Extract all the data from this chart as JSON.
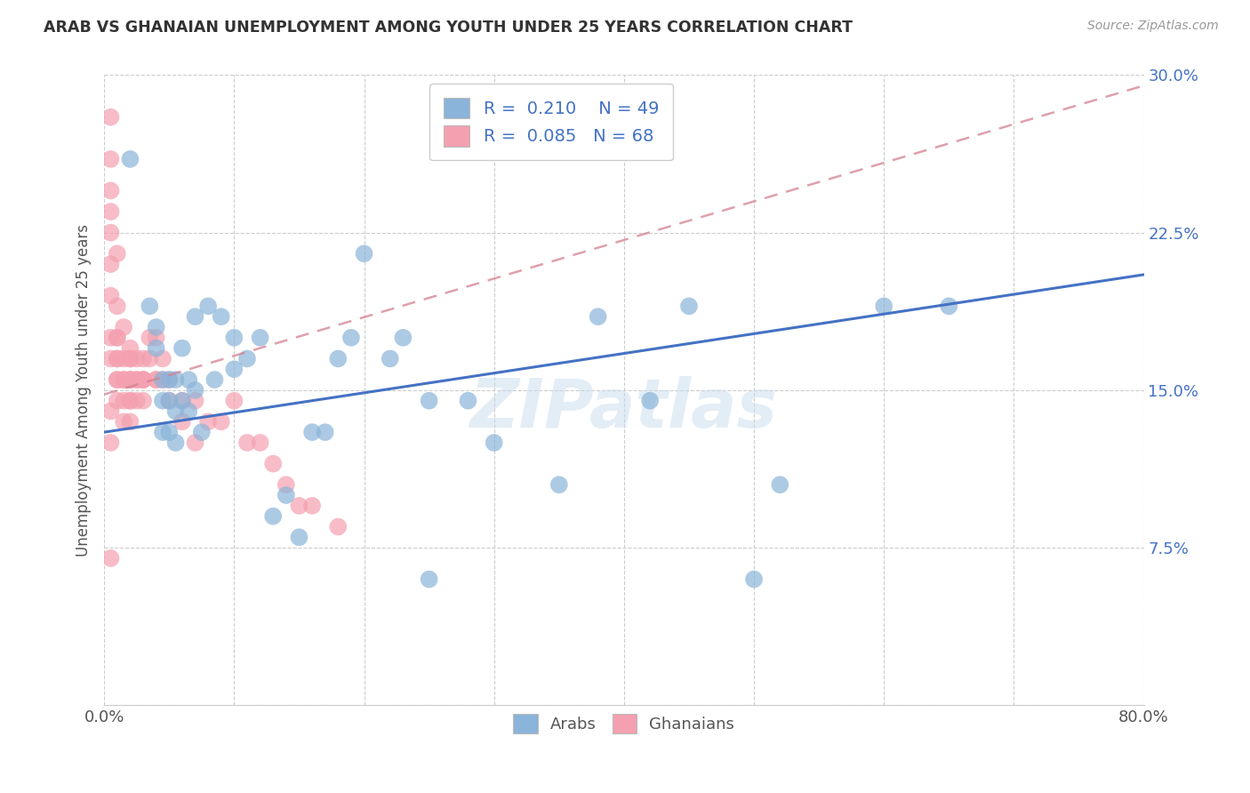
{
  "title": "ARAB VS GHANAIAN UNEMPLOYMENT AMONG YOUTH UNDER 25 YEARS CORRELATION CHART",
  "source": "Source: ZipAtlas.com",
  "ylabel": "Unemployment Among Youth under 25 years",
  "xlim": [
    0.0,
    0.8
  ],
  "ylim": [
    0.0,
    0.3
  ],
  "xticks": [
    0.0,
    0.1,
    0.2,
    0.3,
    0.4,
    0.5,
    0.6,
    0.7,
    0.8
  ],
  "xticklabels": [
    "0.0%",
    "",
    "",
    "",
    "",
    "",
    "",
    "",
    "80.0%"
  ],
  "yticks": [
    0.0,
    0.075,
    0.15,
    0.225,
    0.3
  ],
  "yticklabels": [
    "",
    "7.5%",
    "15.0%",
    "22.5%",
    "30.0%"
  ],
  "arab_R": "0.210",
  "arab_N": "49",
  "ghanaian_R": "0.085",
  "ghanaian_N": "68",
  "arab_color": "#8ab4d9",
  "ghanaian_color": "#f4a0b0",
  "arab_line_color": "#4472c4",
  "ghanaian_line_color": "#d48090",
  "watermark": "ZIPatlas",
  "background_color": "#ffffff",
  "arab_line_x0": 0.0,
  "arab_line_y0": 0.13,
  "arab_line_x1": 0.8,
  "arab_line_y1": 0.205,
  "ghanaian_line_x0": 0.0,
  "ghanaian_line_y0": 0.148,
  "ghanaian_line_x1": 0.8,
  "ghanaian_line_y1": 0.295,
  "arab_x": [
    0.02,
    0.035,
    0.04,
    0.04,
    0.045,
    0.045,
    0.045,
    0.05,
    0.05,
    0.05,
    0.055,
    0.055,
    0.055,
    0.06,
    0.06,
    0.065,
    0.065,
    0.07,
    0.07,
    0.075,
    0.08,
    0.085,
    0.09,
    0.1,
    0.1,
    0.11,
    0.12,
    0.13,
    0.14,
    0.15,
    0.16,
    0.17,
    0.18,
    0.19,
    0.2,
    0.22,
    0.23,
    0.25,
    0.25,
    0.28,
    0.3,
    0.35,
    0.38,
    0.42,
    0.45,
    0.5,
    0.52,
    0.6,
    0.65
  ],
  "arab_y": [
    0.26,
    0.19,
    0.18,
    0.17,
    0.155,
    0.145,
    0.13,
    0.155,
    0.145,
    0.13,
    0.155,
    0.14,
    0.125,
    0.17,
    0.145,
    0.155,
    0.14,
    0.185,
    0.15,
    0.13,
    0.19,
    0.155,
    0.185,
    0.175,
    0.16,
    0.165,
    0.175,
    0.09,
    0.1,
    0.08,
    0.13,
    0.13,
    0.165,
    0.175,
    0.215,
    0.165,
    0.175,
    0.145,
    0.06,
    0.145,
    0.125,
    0.105,
    0.185,
    0.145,
    0.19,
    0.06,
    0.105,
    0.19,
    0.19
  ],
  "ghanaian_x": [
    0.005,
    0.005,
    0.005,
    0.005,
    0.005,
    0.005,
    0.01,
    0.01,
    0.01,
    0.01,
    0.01,
    0.01,
    0.015,
    0.015,
    0.015,
    0.015,
    0.015,
    0.015,
    0.02,
    0.02,
    0.02,
    0.02,
    0.02,
    0.02,
    0.02,
    0.025,
    0.025,
    0.025,
    0.025,
    0.03,
    0.03,
    0.03,
    0.035,
    0.035,
    0.04,
    0.04,
    0.04,
    0.045,
    0.045,
    0.05,
    0.05,
    0.06,
    0.06,
    0.07,
    0.07,
    0.08,
    0.09,
    0.1,
    0.11,
    0.12,
    0.13,
    0.14,
    0.15,
    0.16,
    0.18,
    0.005,
    0.005,
    0.005,
    0.005,
    0.005,
    0.005,
    0.01,
    0.01,
    0.01,
    0.02,
    0.02,
    0.03,
    0.03
  ],
  "ghanaian_y": [
    0.28,
    0.26,
    0.245,
    0.225,
    0.21,
    0.14,
    0.215,
    0.19,
    0.175,
    0.165,
    0.155,
    0.145,
    0.18,
    0.165,
    0.155,
    0.155,
    0.145,
    0.135,
    0.165,
    0.165,
    0.155,
    0.155,
    0.145,
    0.135,
    0.17,
    0.165,
    0.155,
    0.155,
    0.145,
    0.165,
    0.155,
    0.155,
    0.175,
    0.165,
    0.155,
    0.155,
    0.175,
    0.165,
    0.155,
    0.155,
    0.145,
    0.145,
    0.135,
    0.145,
    0.125,
    0.135,
    0.135,
    0.145,
    0.125,
    0.125,
    0.115,
    0.105,
    0.095,
    0.095,
    0.085,
    0.235,
    0.195,
    0.165,
    0.125,
    0.07,
    0.175,
    0.175,
    0.165,
    0.155,
    0.155,
    0.145,
    0.155,
    0.145
  ]
}
